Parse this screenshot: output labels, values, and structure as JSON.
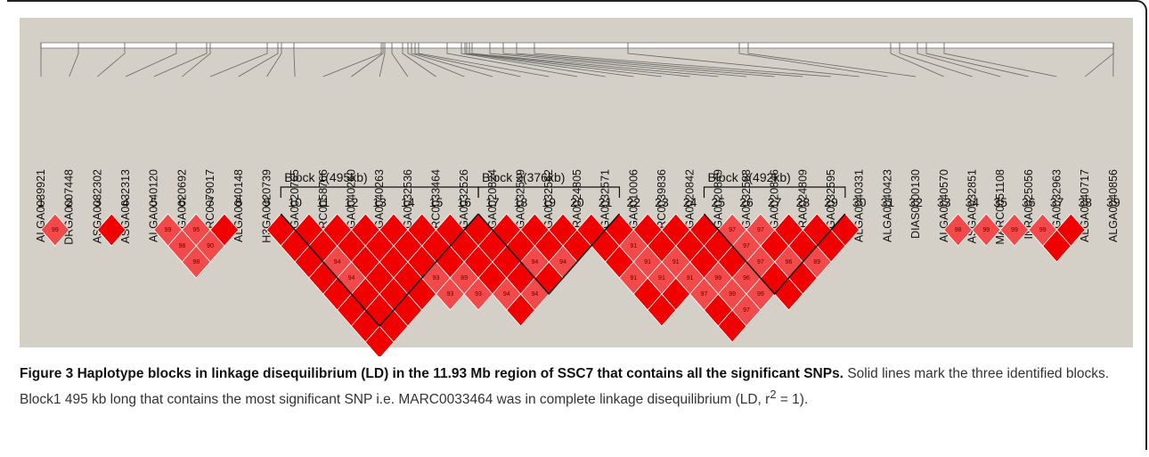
{
  "figure": {
    "markers": [
      {
        "number": 1,
        "name": "ALGA0039921"
      },
      {
        "number": 2,
        "name": "DRGA0007448"
      },
      {
        "number": 3,
        "name": "ASGA0032302"
      },
      {
        "number": 4,
        "name": "ASGA0032313"
      },
      {
        "number": 5,
        "name": "ALGA0040120"
      },
      {
        "number": 6,
        "name": "H3GA0020692"
      },
      {
        "number": 7,
        "name": "MARC0079017"
      },
      {
        "number": 8,
        "name": "ALGA0040148"
      },
      {
        "number": 9,
        "name": "H3GA0020739"
      },
      {
        "number": 10,
        "name": "H3GA0020765"
      },
      {
        "number": 11,
        "name": "MARC0058766"
      },
      {
        "number": 12,
        "name": "ALGA0040260"
      },
      {
        "number": 13,
        "name": "ALGA0040263"
      },
      {
        "number": 14,
        "name": "ASGA0032536"
      },
      {
        "number": 15,
        "name": "MARC0033464"
      },
      {
        "number": 16,
        "name": "ASGA0032526"
      },
      {
        "number": 17,
        "name": "H3GA0020824"
      },
      {
        "number": 18,
        "name": "ASGA0032549"
      },
      {
        "number": 19,
        "name": "ASGA0032562"
      },
      {
        "number": 20,
        "name": "INRA0024805"
      },
      {
        "number": 21,
        "name": "ASGA0032571"
      },
      {
        "number": 22,
        "name": "M1GA0010006"
      },
      {
        "number": 23,
        "name": "MARC0039836"
      },
      {
        "number": 24,
        "name": "H3GA0020842"
      },
      {
        "number": 25,
        "name": "H3GA0020849"
      },
      {
        "number": 26,
        "name": "ASGA0032583"
      },
      {
        "number": 27,
        "name": "H3GA0020846"
      },
      {
        "number": 28,
        "name": "INRA0024809"
      },
      {
        "number": 29,
        "name": "ASGA0032595"
      },
      {
        "number": 30,
        "name": "ALGA0040331"
      },
      {
        "number": 31,
        "name": "ALGA0040423"
      },
      {
        "number": 32,
        "name": "DIAS0000130"
      },
      {
        "number": 33,
        "name": "ALGA0040570"
      },
      {
        "number": 34,
        "name": "ASGA0032851"
      },
      {
        "number": 35,
        "name": "MARC0051108"
      },
      {
        "number": 36,
        "name": "INRA0025056"
      },
      {
        "number": 37,
        "name": "ASGA0032963"
      },
      {
        "number": 38,
        "name": "ALGA0040717"
      },
      {
        "number": 39,
        "name": "ALGA0040856"
      }
    ],
    "ld_ranges": [
      [
        1,
        2
      ],
      [
        3,
        4
      ],
      [
        5,
        8
      ],
      [
        9,
        17
      ],
      [
        15,
        21
      ],
      [
        20,
        26
      ],
      [
        22,
        29
      ],
      [
        25,
        30
      ],
      [
        33,
        34
      ],
      [
        34,
        35
      ],
      [
        35,
        36
      ],
      [
        36,
        38
      ]
    ],
    "ld_color": "#f00000",
    "labeled_color": "#f24a4a",
    "labeled_cells": [
      {
        "pair": [
          1,
          2
        ],
        "label": "99"
      },
      {
        "pair": [
          5,
          6
        ],
        "label": "99"
      },
      {
        "pair": [
          6,
          7
        ],
        "label": "95"
      },
      {
        "pair": [
          5,
          7
        ],
        "label": "98"
      },
      {
        "pair": [
          6,
          8
        ],
        "label": "90"
      },
      {
        "pair": [
          5,
          8
        ],
        "label": "98"
      },
      {
        "pair": [
          10,
          13
        ],
        "label": "94"
      },
      {
        "pair": [
          10,
          14
        ],
        "label": "94"
      },
      {
        "pair": [
          13,
          17
        ],
        "label": "93"
      },
      {
        "pair": [
          13,
          18
        ],
        "label": "93"
      },
      {
        "pair": [
          14,
          18
        ],
        "label": "89"
      },
      {
        "pair": [
          14,
          19
        ],
        "label": "93"
      },
      {
        "pair": [
          15,
          20
        ],
        "label": "94"
      },
      {
        "pair": [
          16,
          21
        ],
        "label": "94"
      },
      {
        "pair": [
          17,
          20
        ],
        "label": "94"
      },
      {
        "pair": [
          18,
          21
        ],
        "label": "94"
      },
      {
        "pair": [
          21,
          23
        ],
        "label": "91"
      },
      {
        "pair": [
          21,
          24
        ],
        "label": "91"
      },
      {
        "pair": [
          22,
          25
        ],
        "label": "91"
      },
      {
        "pair": [
          20,
          24
        ],
        "label": "91"
      },
      {
        "pair": [
          21,
          25
        ],
        "label": "91"
      },
      {
        "pair": [
          22,
          26
        ],
        "label": "91"
      },
      {
        "pair": [
          23,
          27
        ],
        "label": "99"
      },
      {
        "pair": [
          22,
          27
        ],
        "label": "97"
      },
      {
        "pair": [
          23,
          28
        ],
        "label": "99"
      },
      {
        "pair": [
          24,
          28
        ],
        "label": "96"
      },
      {
        "pair": [
          23,
          29
        ],
        "label": "97"
      },
      {
        "pair": [
          24,
          29
        ],
        "label": "99"
      },
      {
        "pair": [
          25,
          26
        ],
        "label": "97"
      },
      {
        "pair": [
          26,
          27
        ],
        "label": "97"
      },
      {
        "pair": [
          25,
          27
        ],
        "label": "97"
      },
      {
        "pair": [
          25,
          28
        ],
        "label": "97"
      },
      {
        "pair": [
          26,
          29
        ],
        "label": "96"
      },
      {
        "pair": [
          27,
          30
        ],
        "label": "89"
      },
      {
        "pair": [
          33,
          34
        ],
        "label": "98"
      },
      {
        "pair": [
          34,
          35
        ],
        "label": "99"
      },
      {
        "pair": [
          35,
          36
        ],
        "label": "99"
      },
      {
        "pair": [
          36,
          37
        ],
        "label": "99"
      }
    ],
    "blocks": [
      {
        "label": "Block 1(495kb)",
        "start": 10,
        "end": 16
      },
      {
        "label": "Block 2(376kb)",
        "start": 17,
        "end": 21
      },
      {
        "label": "Block 3(492kb)",
        "start": 25,
        "end": 29
      }
    ]
  },
  "caption": {
    "title": "Figure 3 Haplotype blocks in linkage disequilibrium (LD) in the 11.93 Mb region of SSC7 that contains all the significant SNPs.",
    "text": "Solid lines mark the three identified blocks. Block1 495 kb long that contains the most significant SNP i.e. MARC0033464 was in complete linkage disequilibrium (LD, r",
    "superscript": "2",
    "text_end": " = 1)."
  }
}
